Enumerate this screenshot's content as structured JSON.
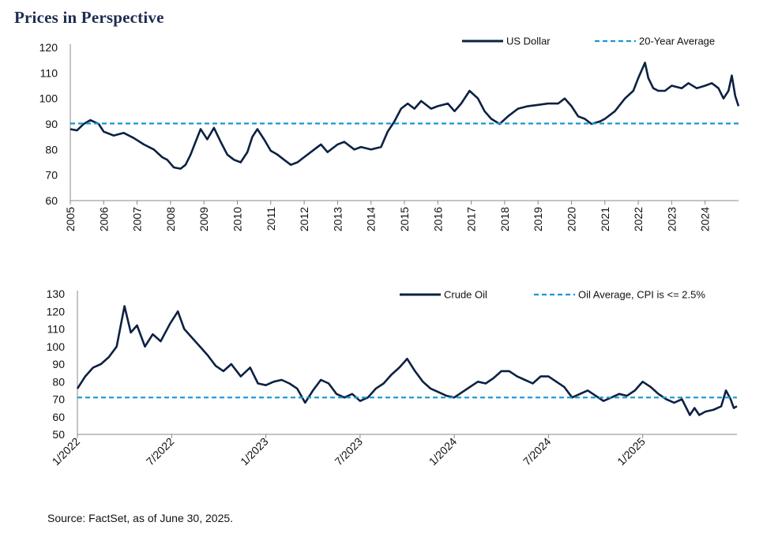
{
  "header": {
    "title": "Prices in Perspective"
  },
  "footer": {
    "source": "Source: FactSet, as of June 30, 2025."
  },
  "colors": {
    "series": "#0c2142",
    "average": "#1a96d2"
  },
  "chart_data": [
    {
      "type": "line",
      "title": "",
      "xlabel": "",
      "ylabel": "",
      "ylim": [
        60,
        120
      ],
      "xlim": [
        2005,
        2025
      ],
      "yticks": [
        "60",
        "70",
        "80",
        "90",
        "100",
        "110",
        "120"
      ],
      "xticks": [
        "2005",
        "2006",
        "2007",
        "2008",
        "2009",
        "2010",
        "2011",
        "2012",
        "2013",
        "2014",
        "2015",
        "2016",
        "2017",
        "2018",
        "2019",
        "2020",
        "2021",
        "2022",
        "2023",
        "2024"
      ],
      "legend_position": "top-right",
      "grid": false,
      "series": [
        {
          "name": "US Dollar",
          "style": "solid",
          "x": [
            2005.0,
            2005.2,
            2005.4,
            2005.6,
            2005.85,
            2006.0,
            2006.3,
            2006.6,
            2006.9,
            2007.2,
            2007.5,
            2007.75,
            2007.9,
            2008.1,
            2008.3,
            2008.45,
            2008.6,
            2008.75,
            2008.9,
            2009.1,
            2009.3,
            2009.5,
            2009.7,
            2009.9,
            2010.1,
            2010.3,
            2010.45,
            2010.6,
            2010.8,
            2011.0,
            2011.2,
            2011.4,
            2011.6,
            2011.8,
            2012.0,
            2012.3,
            2012.5,
            2012.7,
            2013.0,
            2013.2,
            2013.5,
            2013.7,
            2014.0,
            2014.3,
            2014.5,
            2014.7,
            2014.9,
            2015.1,
            2015.3,
            2015.5,
            2015.8,
            2016.0,
            2016.3,
            2016.5,
            2016.7,
            2016.95,
            2017.2,
            2017.4,
            2017.6,
            2017.85,
            2018.1,
            2018.4,
            2018.7,
            2019.0,
            2019.3,
            2019.6,
            2019.8,
            2020.0,
            2020.2,
            2020.4,
            2020.6,
            2020.85,
            2021.0,
            2021.3,
            2021.6,
            2021.85,
            2022.0,
            2022.2,
            2022.3,
            2022.45,
            2022.6,
            2022.8,
            2023.0,
            2023.3,
            2023.5,
            2023.75,
            2024.0,
            2024.2,
            2024.4,
            2024.55,
            2024.7,
            2024.8,
            2024.9,
            2025.0
          ],
          "values": [
            88,
            87.5,
            90,
            91.5,
            90,
            87,
            85.5,
            86.5,
            84.5,
            82,
            80,
            77,
            76,
            73,
            72.5,
            74,
            78,
            83,
            88,
            84,
            88.5,
            83,
            78,
            76,
            75,
            79,
            85,
            88,
            84,
            79.5,
            78,
            76,
            74,
            75,
            77,
            80,
            82,
            79,
            82,
            83,
            80,
            81,
            80,
            81,
            87,
            91,
            96,
            98,
            96,
            99,
            96,
            97,
            98,
            95,
            98,
            103,
            100,
            95,
            92,
            90,
            93,
            96,
            97,
            97.5,
            98,
            98,
            100,
            97,
            93,
            92,
            90,
            91,
            92,
            95,
            100,
            103,
            108,
            114,
            108,
            104,
            103,
            103,
            105,
            104,
            106,
            104,
            105,
            106,
            104,
            100,
            103,
            109,
            101,
            97
          ]
        },
        {
          "name": "20-Year Average",
          "style": "dashed",
          "x": [
            2005.0,
            2025.0
          ],
          "values": [
            90.2,
            90.2
          ]
        }
      ]
    },
    {
      "type": "line",
      "title": "",
      "xlabel": "",
      "ylabel": "",
      "ylim": [
        50,
        130
      ],
      "xlim": [
        0,
        42
      ],
      "yticks": [
        "50",
        "60",
        "70",
        "80",
        "90",
        "100",
        "110",
        "120",
        "130"
      ],
      "xticks": [
        "1/2022",
        "7/2022",
        "1/2023",
        "7/2023",
        "1/2024",
        "7/2024",
        "1/2025"
      ],
      "xtick_positions": [
        0,
        6,
        12,
        18,
        24,
        30,
        36
      ],
      "legend_position": "top-right",
      "grid": false,
      "series": [
        {
          "name": "Crude Oil",
          "style": "solid",
          "x": [
            0,
            0.5,
            1,
            1.5,
            2,
            2.5,
            3,
            3.4,
            3.8,
            4.3,
            4.8,
            5.3,
            5.9,
            6.4,
            6.8,
            7.3,
            7.8,
            8.3,
            8.8,
            9.3,
            9.8,
            10.4,
            11,
            11.5,
            12,
            12.5,
            13,
            13.5,
            14,
            14.5,
            15,
            15.5,
            16,
            16.5,
            17,
            17.5,
            18,
            18.5,
            19,
            19.5,
            20,
            20.5,
            21,
            21.5,
            22,
            22.5,
            23,
            23.5,
            24,
            24.5,
            25,
            25.5,
            26,
            26.5,
            27,
            27.5,
            28,
            28.5,
            29,
            29.5,
            30,
            30.5,
            31,
            31.5,
            32,
            32.5,
            33,
            33.5,
            34,
            34.5,
            35,
            35.5,
            36,
            36.5,
            37,
            37.5,
            38,
            38.5,
            39,
            39.3,
            39.6,
            40,
            40.5,
            41,
            41.3,
            41.6,
            41.8,
            42
          ],
          "values": [
            76,
            83,
            88,
            90,
            94,
            100,
            123,
            108,
            112,
            100,
            107,
            103,
            113,
            120,
            110,
            105,
            100,
            95,
            89,
            86,
            90,
            83,
            88,
            79,
            78,
            80,
            81,
            79,
            76,
            68,
            75,
            81,
            79,
            73,
            71,
            73,
            69,
            71,
            76,
            79,
            84,
            88,
            93,
            86,
            80,
            76,
            74,
            72,
            71,
            74,
            77,
            80,
            79,
            82,
            86,
            86,
            83,
            81,
            79,
            83,
            83,
            80,
            77,
            71,
            73,
            75,
            72,
            69,
            71,
            73,
            72,
            75,
            80,
            77,
            73,
            70,
            68,
            70,
            61,
            65,
            61,
            63,
            64,
            66,
            75,
            70,
            65,
            66
          ]
        },
        {
          "name": "Oil Average, CPI is <= 2.5%",
          "style": "dashed",
          "x": [
            0,
            42
          ],
          "values": [
            71,
            71
          ]
        }
      ]
    }
  ]
}
